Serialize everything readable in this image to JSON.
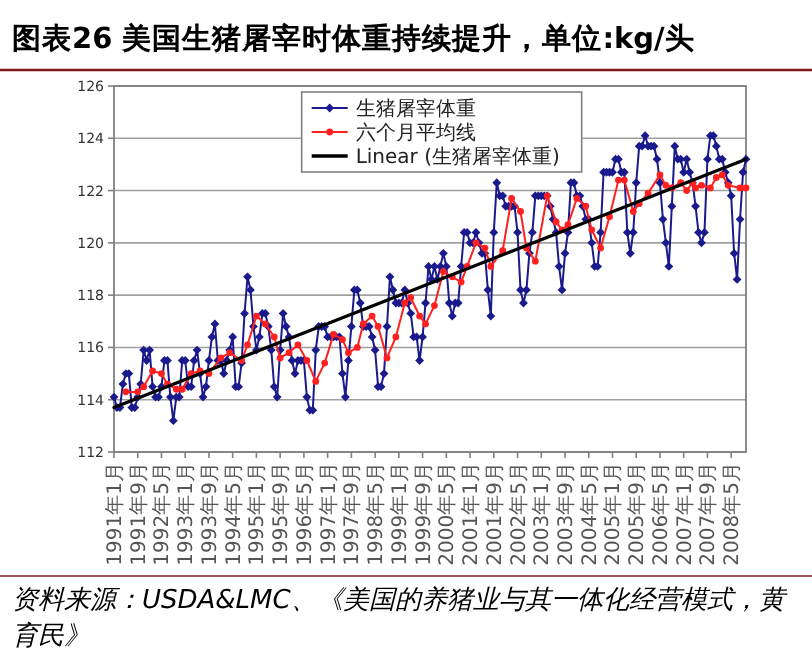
{
  "chart_data": {
    "type": "line",
    "title": "图表26    美国生猪屠宰时体重持续提升，单位:kg/头",
    "xlim": [
      "1991-01",
      "2008-10"
    ],
    "xticks": [
      {
        "value": "1991-01",
        "label": "1991年1月"
      },
      {
        "value": "1991-09",
        "label": "1991年9月"
      },
      {
        "value": "1992-05",
        "label": "1992年5月"
      },
      {
        "value": "1993-01",
        "label": "1993年1月"
      },
      {
        "value": "1993-09",
        "label": "1993年9月"
      },
      {
        "value": "1994-05",
        "label": "1994年5月"
      },
      {
        "value": "1995-01",
        "label": "1995年1月"
      },
      {
        "value": "1995-09",
        "label": "1995年9月"
      },
      {
        "value": "1996-05",
        "label": "1996年5月"
      },
      {
        "value": "1997-01",
        "label": "1997年1月"
      },
      {
        "value": "1997-09",
        "label": "1997年9月"
      },
      {
        "value": "1998-05",
        "label": "1998年5月"
      },
      {
        "value": "1999-01",
        "label": "1999年1月"
      },
      {
        "value": "1999-09",
        "label": "1999年9月"
      },
      {
        "value": "2000-05",
        "label": "2000年5月"
      },
      {
        "value": "2001-01",
        "label": "2001年1月"
      },
      {
        "value": "2001-09",
        "label": "2001年9月"
      },
      {
        "value": "2002-05",
        "label": "2002年5月"
      },
      {
        "value": "2003-01",
        "label": "2003年1月"
      },
      {
        "value": "2003-09",
        "label": "2003年9月"
      },
      {
        "value": "2004-05",
        "label": "2004年5月"
      },
      {
        "value": "2005-01",
        "label": "2005年1月"
      },
      {
        "value": "2005-09",
        "label": "2005年9月"
      },
      {
        "value": "2006-05",
        "label": "2006年5月"
      },
      {
        "value": "2007-01",
        "label": "2007年1月"
      },
      {
        "value": "2007-09",
        "label": "2007年9月"
      },
      {
        "value": "2008-05",
        "label": "2008年5月"
      }
    ],
    "ylim": [
      112,
      126
    ],
    "yticks": [
      112,
      114,
      116,
      118,
      120,
      122,
      124,
      126
    ],
    "grid": "y",
    "legend": "top right",
    "series": [
      {
        "name": "生猪屠宰体重",
        "type": "line",
        "color": "#1a1a8c",
        "marker": "diamond",
        "x": [
          "1991-01",
          "1991-02",
          "1991-03",
          "1991-04",
          "1991-05",
          "1991-06",
          "1991-07",
          "1991-08",
          "1991-09",
          "1991-10",
          "1991-11",
          "1991-12",
          "1992-01",
          "1992-02",
          "1992-03",
          "1992-04",
          "1992-05",
          "1992-06",
          "1992-07",
          "1992-08",
          "1992-09",
          "1992-10",
          "1992-11",
          "1992-12",
          "1993-01",
          "1993-02",
          "1993-03",
          "1993-04",
          "1993-05",
          "1993-06",
          "1993-07",
          "1993-08",
          "1993-09",
          "1993-10",
          "1993-11",
          "1993-12",
          "1994-01",
          "1994-02",
          "1994-03",
          "1994-04",
          "1994-05",
          "1994-06",
          "1994-07",
          "1994-08",
          "1994-09",
          "1994-10",
          "1994-11",
          "1994-12",
          "1995-01",
          "1995-02",
          "1995-03",
          "1995-04",
          "1995-05",
          "1995-06",
          "1995-07",
          "1995-08",
          "1995-09",
          "1995-10",
          "1995-11",
          "1995-12",
          "1996-01",
          "1996-02",
          "1996-03",
          "1996-04",
          "1996-05",
          "1996-06",
          "1996-07",
          "1996-08",
          "1996-09",
          "1996-10",
          "1996-11",
          "1996-12",
          "1997-01",
          "1997-02",
          "1997-03",
          "1997-04",
          "1997-05",
          "1997-06",
          "1997-07",
          "1997-08",
          "1997-09",
          "1997-10",
          "1997-11",
          "1997-12",
          "1998-01",
          "1998-02",
          "1998-03",
          "1998-04",
          "1998-05",
          "1998-06",
          "1998-07",
          "1998-08",
          "1998-09",
          "1998-10",
          "1998-11",
          "1998-12",
          "1999-01",
          "1999-02",
          "1999-03",
          "1999-04",
          "1999-05",
          "1999-06",
          "1999-07",
          "1999-08",
          "1999-09",
          "1999-10",
          "1999-11",
          "1999-12",
          "2000-01",
          "2000-02",
          "2000-03",
          "2000-04",
          "2000-05",
          "2000-06",
          "2000-07",
          "2000-08",
          "2000-09",
          "2000-10",
          "2000-11",
          "2000-12",
          "2001-01",
          "2001-02",
          "2001-03",
          "2001-04",
          "2001-05",
          "2001-06",
          "2001-07",
          "2001-08",
          "2001-09",
          "2001-10",
          "2001-11",
          "2001-12",
          "2002-01",
          "2002-02",
          "2002-03",
          "2002-04",
          "2002-05",
          "2002-06",
          "2002-07",
          "2002-08",
          "2002-09",
          "2002-10",
          "2002-11",
          "2002-12",
          "2003-01",
          "2003-02",
          "2003-03",
          "2003-04",
          "2003-05",
          "2003-06",
          "2003-07",
          "2003-08",
          "2003-09",
          "2003-10",
          "2003-11",
          "2003-12",
          "2004-01",
          "2004-02",
          "2004-03",
          "2004-04",
          "2004-05",
          "2004-06",
          "2004-07",
          "2004-08",
          "2004-09",
          "2004-10",
          "2004-11",
          "2004-12",
          "2005-01",
          "2005-02",
          "2005-03",
          "2005-04",
          "2005-05",
          "2005-06",
          "2005-07",
          "2005-08",
          "2005-09",
          "2005-10",
          "2005-11",
          "2005-12",
          "2006-01",
          "2006-02",
          "2006-03",
          "2006-04",
          "2006-05",
          "2006-06",
          "2006-07",
          "2006-08",
          "2006-09",
          "2006-10",
          "2006-11",
          "2006-12",
          "2007-01",
          "2007-02",
          "2007-03",
          "2007-04",
          "2007-05",
          "2007-06",
          "2007-07",
          "2007-08",
          "2007-09",
          "2007-10",
          "2007-11",
          "2007-12",
          "2008-01",
          "2008-02",
          "2008-03",
          "2008-04",
          "2008-05",
          "2008-06",
          "2008-07",
          "2008-08",
          "2008-09",
          "2008-10"
        ],
        "values": [
          114.1,
          113.7,
          113.7,
          114.6,
          115.0,
          115.0,
          113.7,
          113.7,
          114.1,
          114.6,
          115.9,
          115.5,
          115.9,
          114.5,
          114.1,
          114.1,
          114.5,
          115.5,
          115.5,
          114.1,
          113.2,
          114.1,
          114.1,
          115.5,
          115.5,
          114.5,
          114.5,
          115.5,
          115.9,
          115.0,
          114.1,
          114.5,
          115.5,
          116.4,
          116.9,
          115.5,
          115.5,
          115.0,
          115.5,
          115.9,
          116.4,
          114.5,
          114.5,
          115.4,
          117.3,
          118.7,
          118.2,
          116.8,
          115.9,
          116.4,
          117.3,
          117.3,
          116.8,
          115.9,
          114.5,
          114.1,
          115.9,
          117.3,
          116.8,
          116.4,
          115.5,
          115.0,
          115.5,
          115.5,
          115.5,
          114.1,
          113.6,
          113.6,
          115.9,
          116.8,
          116.8,
          116.8,
          116.4,
          116.4,
          116.4,
          116.4,
          116.4,
          115.0,
          114.1,
          115.5,
          116.8,
          118.2,
          118.2,
          117.7,
          116.8,
          116.8,
          116.8,
          116.4,
          115.9,
          114.5,
          114.5,
          115.0,
          116.8,
          118.7,
          118.2,
          117.7,
          117.7,
          117.7,
          118.2,
          117.7,
          117.3,
          116.4,
          116.4,
          115.5,
          116.4,
          117.7,
          119.1,
          118.6,
          119.1,
          118.6,
          119.1,
          119.6,
          119.1,
          117.7,
          117.2,
          117.7,
          117.7,
          119.1,
          120.4,
          120.4,
          120.0,
          120.0,
          120.4,
          120.0,
          119.6,
          119.6,
          118.2,
          117.2,
          120.4,
          122.3,
          121.8,
          121.8,
          121.4,
          121.4,
          121.4,
          121.4,
          120.4,
          118.2,
          117.7,
          118.2,
          119.6,
          120.4,
          121.8,
          121.8,
          121.8,
          121.8,
          121.8,
          121.4,
          120.9,
          120.4,
          119.1,
          118.2,
          119.6,
          120.4,
          122.3,
          122.3,
          121.8,
          121.8,
          121.4,
          120.9,
          120.9,
          120.0,
          119.1,
          119.1,
          120.4,
          122.7,
          122.7,
          122.7,
          122.7,
          123.2,
          123.2,
          122.7,
          122.7,
          120.4,
          119.6,
          120.4,
          122.3,
          123.7,
          123.7,
          124.1,
          123.7,
          123.7,
          123.7,
          123.2,
          122.3,
          120.9,
          120.0,
          119.1,
          121.4,
          123.7,
          123.2,
          123.2,
          122.7,
          123.2,
          122.7,
          122.3,
          121.4,
          120.4,
          120.0,
          120.4,
          123.2,
          124.1,
          124.1,
          123.7,
          123.2,
          123.2,
          122.7,
          122.3,
          121.8,
          119.6,
          118.6,
          120.9,
          122.7,
          123.2
        ]
      },
      {
        "name": "六个月平均线",
        "type": "line",
        "color": "#ff2020",
        "marker": "circle",
        "x": [
          "1991-05",
          "1991-09",
          "1991-11",
          "1992-02",
          "1992-05",
          "1992-07",
          "1992-10",
          "1992-12",
          "1993-03",
          "1993-06",
          "1993-09",
          "1994-01",
          "1994-04",
          "1994-08",
          "1994-10",
          "1995-01",
          "1995-04",
          "1995-07",
          "1995-09",
          "1995-12",
          "1996-03",
          "1996-06",
          "1996-09",
          "1996-12",
          "1997-03",
          "1997-06",
          "1997-08",
          "1997-11",
          "1998-01",
          "1998-04",
          "1998-06",
          "1998-09",
          "1998-12",
          "1999-03",
          "1999-05",
          "1999-08",
          "1999-10",
          "2000-01",
          "2000-04",
          "2000-07",
          "2000-10",
          "2000-12",
          "2001-03",
          "2001-06",
          "2001-08",
          "2001-12",
          "2002-03",
          "2002-06",
          "2002-08",
          "2002-11",
          "2003-03",
          "2003-06",
          "2003-08",
          "2003-10",
          "2004-01",
          "2004-04",
          "2004-06",
          "2004-09",
          "2004-12",
          "2005-03",
          "2005-05",
          "2005-08",
          "2005-10",
          "2006-01",
          "2006-05",
          "2006-07",
          "2006-09",
          "2006-12",
          "2007-02",
          "2007-04",
          "2007-05",
          "2007-07",
          "2007-10",
          "2007-12",
          "2008-02",
          "2008-04",
          "2008-08",
          "2008-10"
        ],
        "values": [
          114.3,
          114.3,
          114.5,
          115.1,
          115.0,
          114.6,
          114.4,
          114.4,
          115.0,
          115.1,
          115.0,
          115.6,
          115.8,
          115.5,
          116.1,
          117.2,
          116.9,
          116.4,
          115.6,
          115.8,
          116.1,
          115.5,
          114.7,
          115.4,
          116.5,
          116.3,
          115.8,
          116.0,
          116.9,
          117.2,
          116.8,
          115.6,
          116.4,
          117.7,
          117.9,
          117.2,
          116.9,
          117.6,
          118.9,
          118.7,
          118.5,
          119.1,
          120.0,
          119.8,
          119.1,
          119.7,
          121.7,
          121.2,
          119.8,
          119.3,
          121.8,
          120.8,
          120.5,
          120.7,
          121.7,
          121.4,
          120.5,
          119.8,
          121.0,
          122.4,
          122.4,
          121.2,
          121.5,
          121.9,
          122.6,
          122.2,
          122.1,
          122.3,
          122.0,
          122.3,
          122.1,
          122.2,
          122.1,
          122.5,
          122.6,
          122.2,
          122.1,
          122.1
        ]
      },
      {
        "name": "Linear (生猪屠宰体重)",
        "type": "line",
        "color": "#000000",
        "marker": "none",
        "x": [
          "1991-01",
          "2008-10"
        ],
        "values": [
          113.7,
          123.2
        ]
      }
    ],
    "annotations": [
      "资料来源：USDA&LMC、《美国的养猪业与其一体化经营模式，黄育民》"
    ]
  }
}
